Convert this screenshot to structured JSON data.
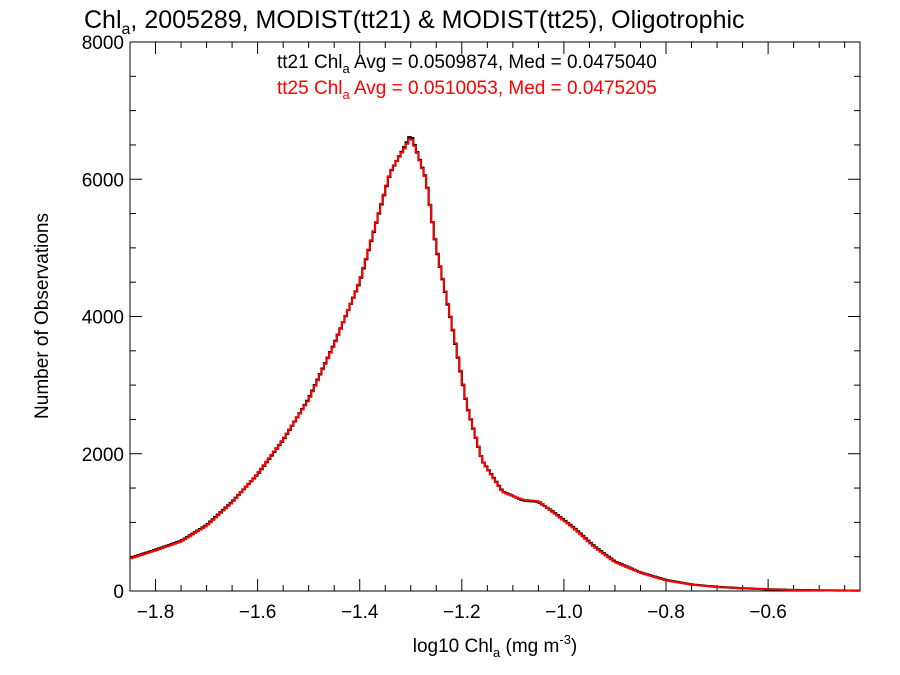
{
  "chart_data": {
    "type": "histogram-line",
    "title": {
      "pre": "Chl",
      "sub": "a",
      "post": ", 2005289, MODIST(tt21) & MODIST(tt25), Oligotrophic"
    },
    "xlabel": {
      "pre": "log10 Chl",
      "sub": "a",
      "mid": " (mg m",
      "sup": "-3",
      "post": ")"
    },
    "ylabel": "Number of Observations",
    "xlim": [
      -1.85,
      -0.42
    ],
    "ylim": [
      0,
      8000
    ],
    "x_ticks": [
      {
        "value": -1.8,
        "label": "−1.8"
      },
      {
        "value": -1.6,
        "label": "−1.6"
      },
      {
        "value": -1.4,
        "label": "−1.4"
      },
      {
        "value": -1.2,
        "label": "−1.2"
      },
      {
        "value": -1.0,
        "label": "−1.0"
      },
      {
        "value": -0.8,
        "label": "−0.8"
      },
      {
        "value": -0.6,
        "label": "−0.6"
      }
    ],
    "y_ticks": [
      {
        "value": 0,
        "label": "0"
      },
      {
        "value": 2000,
        "label": "2000"
      },
      {
        "value": 4000,
        "label": "4000"
      },
      {
        "value": 6000,
        "label": "6000"
      },
      {
        "value": 8000,
        "label": "8000"
      }
    ],
    "annotations": [
      {
        "color": "#000000",
        "pre": "tt21 Chl",
        "sub": "a",
        "post": " Avg = 0.0509874, Med = 0.0475040"
      },
      {
        "color": "#ff0000",
        "pre": "tt25 Chl",
        "sub": "a",
        "post": " Avg = 0.0510053, Med = 0.0475205"
      }
    ],
    "series": [
      {
        "color": "#000000",
        "points": [
          [
            -1.85,
            480
          ],
          [
            -1.8,
            600
          ],
          [
            -1.75,
            730
          ],
          [
            -1.7,
            960
          ],
          [
            -1.65,
            1300
          ],
          [
            -1.6,
            1700
          ],
          [
            -1.55,
            2200
          ],
          [
            -1.5,
            2800
          ],
          [
            -1.45,
            3600
          ],
          [
            -1.4,
            4500
          ],
          [
            -1.37,
            5300
          ],
          [
            -1.34,
            6100
          ],
          [
            -1.31,
            6500
          ],
          [
            -1.3,
            6650
          ],
          [
            -1.29,
            6450
          ],
          [
            -1.27,
            6000
          ],
          [
            -1.25,
            5000
          ],
          [
            -1.22,
            3900
          ],
          [
            -1.19,
            2700
          ],
          [
            -1.16,
            1900
          ],
          [
            -1.12,
            1450
          ],
          [
            -1.08,
            1320
          ],
          [
            -1.05,
            1300
          ],
          [
            -1.02,
            1150
          ],
          [
            -0.98,
            920
          ],
          [
            -0.94,
            650
          ],
          [
            -0.9,
            430
          ],
          [
            -0.85,
            270
          ],
          [
            -0.8,
            160
          ],
          [
            -0.75,
            95
          ],
          [
            -0.7,
            60
          ],
          [
            -0.65,
            40
          ],
          [
            -0.6,
            25
          ],
          [
            -0.55,
            15
          ],
          [
            -0.5,
            10
          ],
          [
            -0.42,
            5
          ]
        ]
      },
      {
        "color": "#ff0000",
        "points": [
          [
            -1.85,
            470
          ],
          [
            -1.8,
            590
          ],
          [
            -1.75,
            720
          ],
          [
            -1.7,
            950
          ],
          [
            -1.65,
            1290
          ],
          [
            -1.6,
            1710
          ],
          [
            -1.55,
            2210
          ],
          [
            -1.5,
            2790
          ],
          [
            -1.45,
            3590
          ],
          [
            -1.4,
            4510
          ],
          [
            -1.37,
            5310
          ],
          [
            -1.34,
            6110
          ],
          [
            -1.31,
            6480
          ],
          [
            -1.3,
            6620
          ],
          [
            -1.29,
            6440
          ],
          [
            -1.27,
            5990
          ],
          [
            -1.25,
            5010
          ],
          [
            -1.22,
            3910
          ],
          [
            -1.19,
            2710
          ],
          [
            -1.16,
            1900
          ],
          [
            -1.12,
            1440
          ],
          [
            -1.08,
            1330
          ],
          [
            -1.05,
            1310
          ],
          [
            -1.02,
            1140
          ],
          [
            -0.98,
            910
          ],
          [
            -0.94,
            640
          ],
          [
            -0.9,
            420
          ],
          [
            -0.85,
            265
          ],
          [
            -0.8,
            155
          ],
          [
            -0.75,
            92
          ],
          [
            -0.7,
            58
          ],
          [
            -0.65,
            38
          ],
          [
            -0.6,
            24
          ],
          [
            -0.55,
            14
          ],
          [
            -0.5,
            9
          ],
          [
            -0.42,
            5
          ]
        ]
      }
    ]
  }
}
